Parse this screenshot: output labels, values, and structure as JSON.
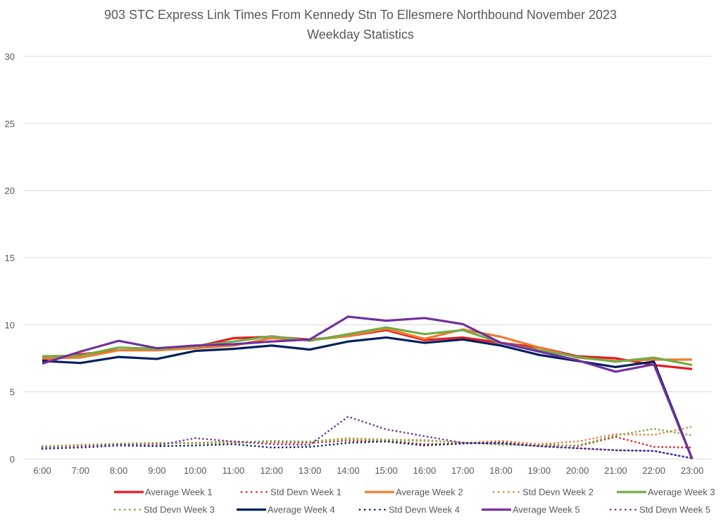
{
  "chart_data": {
    "type": "line",
    "title": "903 STC Express Link Times From Kennedy Stn To Ellesmere Northbound November 2023",
    "subtitle": "Weekday Statistics",
    "xlabel": "",
    "ylabel": "",
    "ylim": [
      0,
      30
    ],
    "yticks": [
      0,
      5,
      10,
      15,
      20,
      25,
      30
    ],
    "grid": true,
    "legend_position": "bottom",
    "categories": [
      "6:00",
      "7:00",
      "8:00",
      "9:00",
      "10:00",
      "11:00",
      "12:00",
      "13:00",
      "14:00",
      "15:00",
      "16:00",
      "17:00",
      "18:00",
      "19:00",
      "20:00",
      "21:00",
      "22:00",
      "23:00"
    ],
    "series": [
      {
        "name": "Average Week 1",
        "style": "solid",
        "color": "#e8191f",
        "values": [
          7.4,
          7.8,
          8.1,
          8.1,
          8.35,
          9.0,
          9.1,
          8.9,
          9.15,
          9.6,
          8.85,
          9.05,
          8.65,
          8.3,
          7.65,
          7.5,
          7.0,
          6.7
        ]
      },
      {
        "name": "Std Devn Week 1",
        "style": "dotted",
        "color": "#e8191f",
        "values": [
          0.9,
          1.05,
          1.1,
          1.15,
          1.2,
          1.3,
          1.25,
          1.2,
          1.35,
          1.35,
          1.1,
          1.15,
          1.3,
          1.1,
          0.95,
          1.65,
          0.9,
          0.85
        ]
      },
      {
        "name": "Average Week 2",
        "style": "solid",
        "color": "#ed7d31",
        "values": [
          7.5,
          7.55,
          8.1,
          8.1,
          8.25,
          8.45,
          9.0,
          8.85,
          9.15,
          9.7,
          8.95,
          9.65,
          9.1,
          8.3,
          7.55,
          7.3,
          7.4,
          7.4
        ]
      },
      {
        "name": "Std Devn Week 2",
        "style": "dotted",
        "color": "#ed7d31",
        "values": [
          0.95,
          1.05,
          1.15,
          1.2,
          1.15,
          1.2,
          1.3,
          1.3,
          1.55,
          1.45,
          1.4,
          1.2,
          1.35,
          1.1,
          1.3,
          1.85,
          1.8,
          2.4
        ]
      },
      {
        "name": "Average Week 3",
        "style": "solid",
        "color": "#70ad47",
        "values": [
          7.65,
          7.7,
          8.3,
          8.2,
          8.4,
          8.75,
          9.15,
          8.8,
          9.3,
          9.8,
          9.3,
          9.6,
          8.65,
          8.1,
          7.6,
          7.25,
          7.55,
          7.0
        ]
      },
      {
        "name": "Std Devn Week 3",
        "style": "dotted",
        "color": "#70ad47",
        "values": [
          0.95,
          1.0,
          1.1,
          1.2,
          1.2,
          1.25,
          1.35,
          1.3,
          1.45,
          1.4,
          1.35,
          1.25,
          1.05,
          1.0,
          1.0,
          1.75,
          2.25,
          1.75
        ]
      },
      {
        "name": "Average Week 4",
        "style": "solid",
        "color": "#002060",
        "values": [
          7.3,
          7.15,
          7.6,
          7.45,
          8.05,
          8.2,
          8.45,
          8.15,
          8.75,
          9.05,
          8.65,
          8.9,
          8.45,
          7.75,
          7.3,
          6.85,
          7.25,
          0
        ]
      },
      {
        "name": "Std Devn Week 4",
        "style": "dotted",
        "color": "#002060",
        "values": [
          0.75,
          0.85,
          1.0,
          0.95,
          1.0,
          1.1,
          0.85,
          0.9,
          1.2,
          1.3,
          1.0,
          1.15,
          1.2,
          0.95,
          0.8,
          0.65,
          0.6,
          0.05
        ]
      },
      {
        "name": "Average Week 5",
        "style": "solid",
        "color": "#7030a0",
        "values": [
          7.1,
          8.0,
          8.8,
          8.25,
          8.45,
          8.55,
          8.75,
          8.9,
          10.6,
          10.3,
          10.5,
          10.05,
          8.65,
          8.0,
          7.35,
          6.5,
          7.05,
          0
        ]
      },
      {
        "name": "Std Devn Week 5",
        "style": "dotted",
        "color": "#7030a0",
        "values": [
          0.8,
          0.9,
          1.05,
          1.0,
          1.55,
          1.3,
          1.1,
          1.05,
          3.15,
          2.2,
          1.7,
          1.2,
          1.15,
          0.95,
          0.8,
          0.65,
          0.6,
          0.05
        ]
      }
    ]
  }
}
